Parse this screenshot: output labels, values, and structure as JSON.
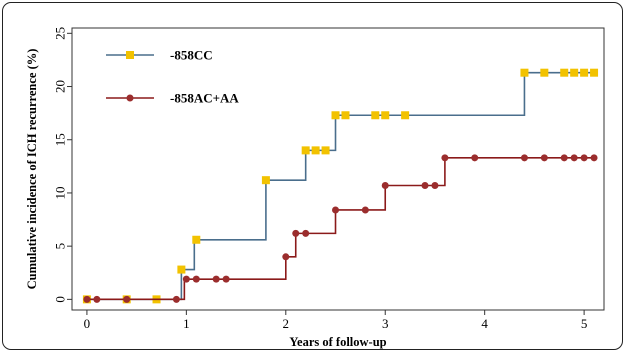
{
  "chart_data": {
    "type": "line",
    "step": true,
    "xlabel": "Years of follow-up",
    "ylabel": "Cumulative incidence of ICH recurrence (%)",
    "xlim": [
      -0.15,
      5.2
    ],
    "ylim": [
      -1,
      25.5
    ],
    "x_ticks": [
      0,
      1,
      2,
      3,
      4,
      5
    ],
    "y_ticks": [
      0,
      5,
      10,
      15,
      20,
      25
    ],
    "grid": false,
    "legend_position": "top-left",
    "series": [
      {
        "name": "-858CC",
        "line_color": "#4a6e8c",
        "marker_color": "#f2c200",
        "marker": "square",
        "steps": [
          [
            0,
            0
          ],
          [
            0.95,
            2.8
          ],
          [
            1.08,
            5.6
          ],
          [
            1.8,
            11.2
          ],
          [
            2.2,
            14
          ],
          [
            2.5,
            17.3
          ],
          [
            4.4,
            21.3
          ],
          [
            5.1,
            21.3
          ]
        ],
        "markers": [
          [
            0,
            0
          ],
          [
            0.4,
            0
          ],
          [
            0.7,
            0
          ],
          [
            0.95,
            2.8
          ],
          [
            1.1,
            5.6
          ],
          [
            1.8,
            11.2
          ],
          [
            2.2,
            14
          ],
          [
            2.3,
            14
          ],
          [
            2.4,
            14
          ],
          [
            2.5,
            17.3
          ],
          [
            2.6,
            17.3
          ],
          [
            2.9,
            17.3
          ],
          [
            3.0,
            17.3
          ],
          [
            3.2,
            17.3
          ],
          [
            4.4,
            21.3
          ],
          [
            4.6,
            21.3
          ],
          [
            4.8,
            21.3
          ],
          [
            4.9,
            21.3
          ],
          [
            5.0,
            21.3
          ],
          [
            5.1,
            21.3
          ]
        ]
      },
      {
        "name": "-858AC+AA",
        "line_color": "#8b1a1a",
        "marker_color": "#9b2d2d",
        "marker": "circle",
        "steps": [
          [
            0,
            0
          ],
          [
            0.98,
            1.9
          ],
          [
            2.0,
            4.0
          ],
          [
            2.1,
            6.2
          ],
          [
            2.5,
            8.4
          ],
          [
            3.0,
            10.7
          ],
          [
            3.6,
            13.3
          ],
          [
            5.1,
            13.3
          ]
        ],
        "markers": [
          [
            0,
            0
          ],
          [
            0.1,
            0
          ],
          [
            0.4,
            0
          ],
          [
            0.9,
            0
          ],
          [
            1.0,
            1.9
          ],
          [
            1.1,
            1.9
          ],
          [
            1.3,
            1.9
          ],
          [
            1.4,
            1.9
          ],
          [
            2.0,
            4.0
          ],
          [
            2.1,
            6.2
          ],
          [
            2.2,
            6.2
          ],
          [
            2.5,
            8.4
          ],
          [
            2.8,
            8.4
          ],
          [
            3.0,
            10.7
          ],
          [
            3.4,
            10.7
          ],
          [
            3.5,
            10.7
          ],
          [
            3.6,
            13.3
          ],
          [
            3.9,
            13.3
          ],
          [
            4.4,
            13.3
          ],
          [
            4.6,
            13.3
          ],
          [
            4.8,
            13.3
          ],
          [
            4.9,
            13.3
          ],
          [
            5.0,
            13.3
          ],
          [
            5.1,
            13.3
          ]
        ]
      }
    ]
  }
}
